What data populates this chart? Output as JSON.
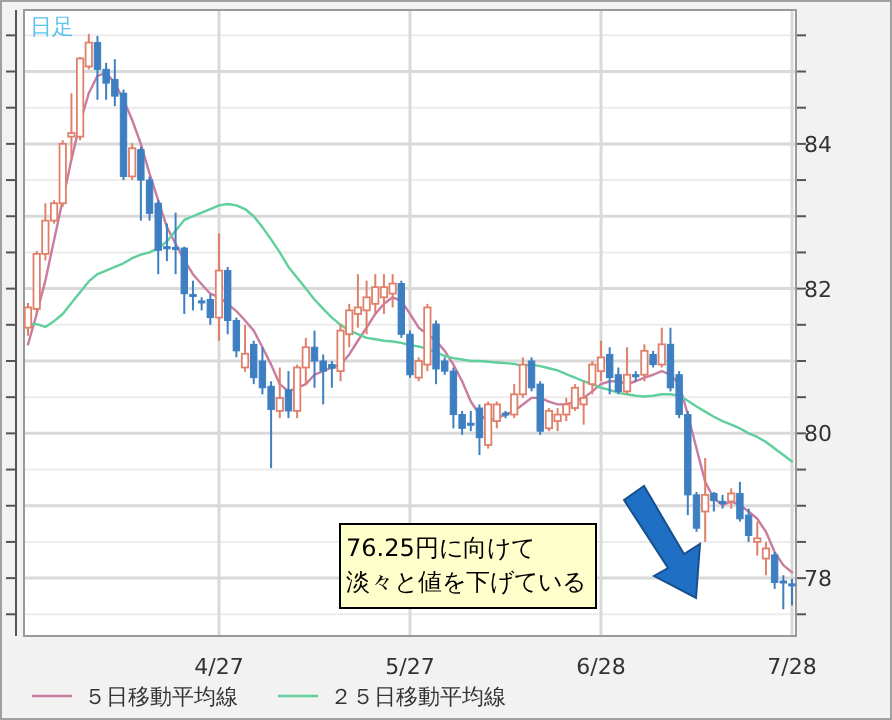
{
  "chart_data": {
    "type": "candlestick",
    "title": "日足",
    "categories": [
      null,
      null,
      null,
      null,
      null,
      null,
      null,
      null,
      null,
      null,
      null,
      null,
      null,
      null,
      null,
      null,
      null,
      null,
      null,
      null,
      null,
      null,
      "4/27",
      null,
      null,
      null,
      null,
      null,
      null,
      null,
      null,
      null,
      null,
      null,
      null,
      null,
      null,
      null,
      null,
      null,
      null,
      null,
      null,
      null,
      "5/27",
      null,
      null,
      null,
      null,
      null,
      null,
      null,
      null,
      null,
      null,
      null,
      null,
      null,
      null,
      null,
      null,
      null,
      null,
      null,
      null,
      null,
      "6/28",
      null,
      null,
      null,
      null,
      null,
      null,
      null,
      null,
      null,
      null,
      null,
      null,
      null,
      null,
      null,
      null,
      null,
      null,
      null,
      null,
      null,
      "7/28"
    ],
    "ohlc": [
      [
        81.46,
        81.8,
        81.35,
        81.74
      ],
      [
        81.72,
        82.52,
        81.65,
        82.48
      ],
      [
        82.48,
        83.18,
        82.39,
        82.94
      ],
      [
        82.94,
        83.22,
        82.9,
        83.18
      ],
      [
        83.18,
        84.05,
        83.13,
        84.0
      ],
      [
        84.1,
        84.7,
        83.78,
        84.15
      ],
      [
        84.1,
        85.2,
        84.05,
        85.18
      ],
      [
        85.07,
        85.52,
        85.03,
        85.4
      ],
      [
        85.4,
        85.49,
        84.61,
        85.03
      ],
      [
        85.03,
        85.12,
        84.61,
        84.84
      ],
      [
        84.89,
        85.17,
        84.52,
        84.66
      ],
      [
        84.7,
        84.75,
        83.5,
        83.55
      ],
      [
        83.55,
        84.01,
        83.5,
        83.94
      ],
      [
        83.92,
        83.96,
        82.94,
        83.5
      ],
      [
        83.5,
        83.55,
        82.94,
        83.04
      ],
      [
        83.18,
        83.22,
        82.2,
        82.53
      ],
      [
        82.58,
        82.9,
        82.38,
        82.55
      ],
      [
        82.57,
        83.05,
        82.2,
        82.55
      ],
      [
        82.56,
        82.58,
        81.65,
        81.93
      ],
      [
        81.92,
        82.11,
        81.7,
        81.9
      ],
      [
        81.83,
        81.88,
        81.7,
        81.82
      ],
      [
        81.85,
        81.92,
        81.5,
        81.6
      ],
      [
        81.6,
        82.76,
        81.28,
        82.25
      ],
      [
        82.25,
        82.3,
        81.37,
        81.56
      ],
      [
        81.56,
        81.6,
        81.05,
        81.14
      ],
      [
        80.91,
        81.5,
        80.85,
        81.1
      ],
      [
        81.23,
        81.28,
        80.68,
        80.77
      ],
      [
        81.0,
        81.19,
        80.54,
        80.63
      ],
      [
        80.65,
        80.72,
        79.52,
        80.33
      ],
      [
        80.31,
        80.91,
        80.21,
        80.49
      ],
      [
        80.6,
        80.86,
        80.21,
        80.31
      ],
      [
        80.31,
        80.95,
        80.21,
        80.91
      ],
      [
        80.91,
        81.32,
        80.68,
        81.19
      ],
      [
        81.19,
        81.42,
        80.63,
        81.0
      ],
      [
        81.0,
        81.09,
        80.4,
        80.86
      ],
      [
        80.95,
        81.0,
        80.63,
        80.9
      ],
      [
        80.86,
        81.51,
        80.72,
        81.42
      ],
      [
        81.37,
        81.79,
        81.19,
        81.7
      ],
      [
        81.65,
        82.2,
        81.46,
        81.74
      ],
      [
        81.7,
        82.11,
        81.37,
        81.88
      ],
      [
        81.79,
        82.2,
        81.65,
        82.02
      ],
      [
        81.88,
        82.2,
        81.65,
        82.02
      ],
      [
        81.93,
        82.2,
        81.74,
        82.07
      ],
      [
        82.07,
        82.11,
        81.32,
        81.37
      ],
      [
        81.37,
        81.42,
        80.77,
        80.81
      ],
      [
        80.77,
        81.05,
        80.72,
        81.0
      ],
      [
        80.95,
        81.79,
        80.86,
        81.74
      ],
      [
        81.51,
        81.56,
        80.68,
        80.89
      ],
      [
        81.0,
        81.05,
        80.81,
        80.86
      ],
      [
        80.86,
        80.91,
        80.07,
        80.26
      ],
      [
        80.26,
        80.31,
        79.98,
        80.07
      ],
      [
        80.14,
        80.31,
        80.03,
        80.12
      ],
      [
        80.35,
        80.4,
        79.7,
        79.94
      ],
      [
        79.84,
        80.44,
        79.79,
        80.4
      ],
      [
        80.17,
        80.44,
        80.07,
        80.4
      ],
      [
        80.28,
        80.31,
        80.21,
        80.26
      ],
      [
        80.26,
        80.68,
        80.21,
        80.54
      ],
      [
        80.54,
        81.05,
        80.49,
        80.95
      ],
      [
        81.0,
        81.05,
        80.58,
        80.63
      ],
      [
        80.68,
        80.72,
        79.98,
        80.03
      ],
      [
        80.07,
        80.35,
        80.03,
        80.31
      ],
      [
        80.17,
        80.35,
        80.03,
        80.26
      ],
      [
        80.26,
        80.49,
        80.17,
        80.4
      ],
      [
        80.35,
        80.68,
        80.31,
        80.63
      ],
      [
        80.4,
        80.72,
        80.12,
        80.49
      ],
      [
        80.68,
        81.0,
        80.54,
        80.95
      ],
      [
        80.86,
        81.28,
        80.72,
        81.05
      ],
      [
        81.09,
        81.19,
        80.54,
        80.77
      ],
      [
        80.81,
        80.91,
        80.54,
        80.58
      ],
      [
        80.58,
        81.19,
        80.54,
        80.81
      ],
      [
        80.81,
        80.86,
        80.72,
        80.79
      ],
      [
        80.81,
        81.23,
        80.72,
        81.14
      ],
      [
        81.09,
        81.14,
        80.91,
        80.95
      ],
      [
        80.95,
        81.46,
        80.91,
        81.23
      ],
      [
        81.23,
        81.46,
        80.58,
        80.63
      ],
      [
        80.81,
        80.86,
        80.21,
        80.26
      ],
      [
        80.26,
        80.31,
        78.87,
        79.15
      ],
      [
        79.15,
        79.19,
        78.64,
        78.69
      ],
      [
        78.92,
        79.66,
        78.5,
        79.15
      ],
      [
        79.17,
        79.19,
        78.92,
        79.07
      ],
      [
        79.06,
        79.15,
        78.96,
        79.04
      ],
      [
        79.06,
        79.24,
        78.96,
        79.17
      ],
      [
        79.17,
        79.33,
        78.78,
        78.82
      ],
      [
        78.87,
        78.96,
        78.5,
        78.59
      ],
      [
        78.5,
        78.78,
        78.31,
        78.55
      ],
      [
        78.27,
        78.5,
        78.04,
        78.41
      ],
      [
        78.32,
        78.36,
        77.85,
        77.94
      ],
      [
        77.96,
        78.04,
        77.57,
        77.94
      ],
      [
        77.92,
        77.99,
        77.62,
        77.9
      ]
    ],
    "colors": [
      "#e0806a",
      "#e0806a",
      "#e0806a",
      "#e0806a",
      "#e0806a",
      "#e0806a",
      "#e0806a",
      "#e0806a",
      "#3d7fc1",
      "#3d7fc1",
      "#3d7fc1",
      "#3d7fc1",
      "#e0806a",
      "#3d7fc1",
      "#3d7fc1",
      "#3d7fc1",
      "#3d7fc1",
      "#3d7fc1",
      "#3d7fc1",
      "#3d7fc1",
      "#3d7fc1",
      "#3d7fc1",
      "#e0806a",
      "#3d7fc1",
      "#3d7fc1",
      "#e0806a",
      "#3d7fc1",
      "#3d7fc1",
      "#3d7fc1",
      "#e0806a",
      "#3d7fc1",
      "#e0806a",
      "#e0806a",
      "#3d7fc1",
      "#3d7fc1",
      "#3d7fc1",
      "#e0806a",
      "#e0806a",
      "#e0806a",
      "#e0806a",
      "#e0806a",
      "#e0806a",
      "#e0806a",
      "#3d7fc1",
      "#3d7fc1",
      "#e0806a",
      "#e0806a",
      "#3d7fc1",
      "#3d7fc1",
      "#3d7fc1",
      "#3d7fc1",
      "#3d7fc1",
      "#3d7fc1",
      "#e0806a",
      "#e0806a",
      "#3d7fc1",
      "#e0806a",
      "#e0806a",
      "#3d7fc1",
      "#3d7fc1",
      "#e0806a",
      "#e0806a",
      "#e0806a",
      "#e0806a",
      "#e0806a",
      "#e0806a",
      "#e0806a",
      "#3d7fc1",
      "#3d7fc1",
      "#e0806a",
      "#3d7fc1",
      "#e0806a",
      "#3d7fc1",
      "#e0806a",
      "#3d7fc1",
      "#3d7fc1",
      "#3d7fc1",
      "#3d7fc1",
      "#e0806a",
      "#3d7fc1",
      "#3d7fc1",
      "#e0806a",
      "#3d7fc1",
      "#3d7fc1",
      "#e0806a",
      "#e0806a",
      "#3d7fc1",
      "#3d7fc1",
      "#3d7fc1"
    ],
    "series": [
      {
        "type": "line",
        "name": "５日移動平均線",
        "color": "#c97ba0",
        "values": [
          81.23,
          81.65,
          82.11,
          82.67,
          83.22,
          83.78,
          84.29,
          84.7,
          84.94,
          84.98,
          84.84,
          84.61,
          84.33,
          84.0,
          83.59,
          83.22,
          82.85,
          82.62,
          82.39,
          82.2,
          82.06,
          81.93,
          81.88,
          81.79,
          81.69,
          81.56,
          81.42,
          81.19,
          80.95,
          80.68,
          80.58,
          80.63,
          80.68,
          80.81,
          80.86,
          80.91,
          80.95,
          81.09,
          81.28,
          81.46,
          81.65,
          81.79,
          81.88,
          81.83,
          81.65,
          81.46,
          81.37,
          81.28,
          81.14,
          80.95,
          80.72,
          80.44,
          80.26,
          80.17,
          80.21,
          80.26,
          80.31,
          80.4,
          80.49,
          80.49,
          80.44,
          80.4,
          80.4,
          80.44,
          80.49,
          80.58,
          80.68,
          80.72,
          80.72,
          80.68,
          80.72,
          80.77,
          80.81,
          80.86,
          80.81,
          80.68,
          80.26,
          79.79,
          79.33,
          79.1,
          79.01,
          79.06,
          79.01,
          78.92,
          78.82,
          78.64,
          78.36,
          78.18,
          78.08
        ]
      },
      {
        "type": "line",
        "name": "２５日移動平均線",
        "color": "#5fcf9c",
        "values": [
          81.51,
          81.51,
          81.47,
          81.55,
          81.65,
          81.8,
          81.95,
          82.1,
          82.2,
          82.25,
          82.3,
          82.35,
          82.42,
          82.47,
          82.5,
          82.56,
          82.65,
          82.8,
          82.95,
          83.0,
          83.05,
          83.1,
          83.15,
          83.17,
          83.15,
          83.1,
          83.0,
          82.85,
          82.68,
          82.5,
          82.3,
          82.15,
          82.0,
          81.85,
          81.72,
          81.6,
          81.5,
          81.42,
          81.37,
          81.32,
          81.3,
          81.28,
          81.27,
          81.25,
          81.22,
          81.2,
          81.17,
          81.12,
          81.07,
          81.04,
          81.02,
          81.0,
          81.0,
          80.99,
          80.98,
          80.97,
          80.96,
          80.93,
          80.95,
          80.93,
          80.9,
          80.87,
          80.82,
          80.77,
          80.72,
          80.68,
          80.63,
          80.6,
          80.56,
          80.54,
          80.52,
          80.51,
          80.52,
          80.54,
          80.54,
          80.52,
          80.45,
          80.37,
          80.3,
          80.23,
          80.17,
          80.12,
          80.07,
          80.0,
          79.95,
          79.88,
          79.79,
          79.7,
          79.61
        ]
      }
    ],
    "ylim": [
      77.2,
      85.85
    ],
    "yticks": [
      {
        "value": 77.5,
        "label": null
      },
      78,
      {
        "value": 78.5,
        "label": null
      },
      {
        "value": 79,
        "label": null
      },
      {
        "value": 79.5,
        "label": null
      },
      80,
      {
        "value": 80.5,
        "label": null
      },
      {
        "value": 81,
        "label": null
      },
      {
        "value": 81.5,
        "label": null
      },
      82,
      {
        "value": 82.5,
        "label": null
      },
      {
        "value": 83,
        "label": null
      },
      {
        "value": 83.5,
        "label": null
      },
      84,
      {
        "value": 84.5,
        "label": null
      },
      {
        "value": 85,
        "label": null
      },
      {
        "value": 85.5,
        "label": null
      }
    ],
    "grid": true,
    "legend": "bottom",
    "annotations": [
      "76.25円に向けて",
      "淡々と値を下げている"
    ]
  }
}
